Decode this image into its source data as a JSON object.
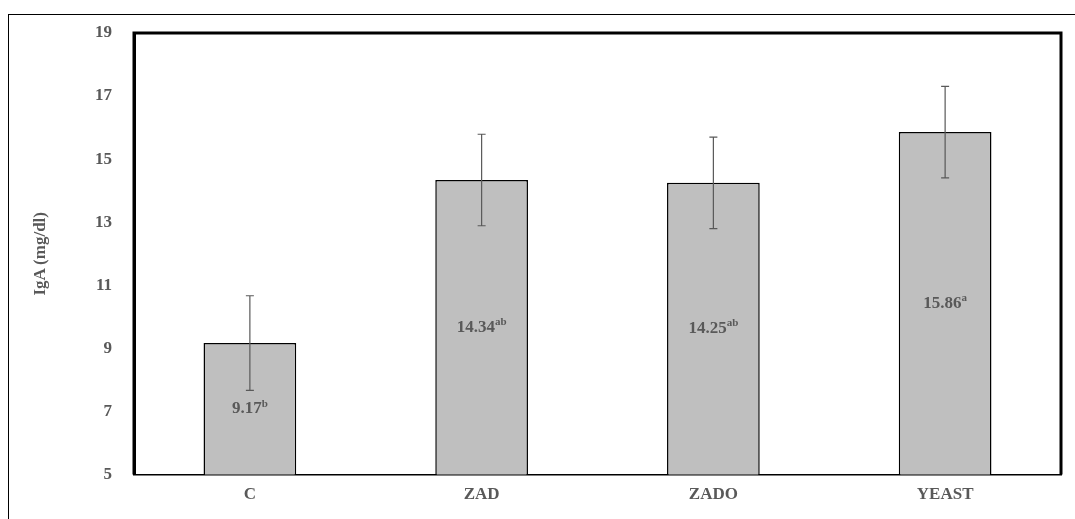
{
  "chart_data": {
    "type": "bar",
    "ylabel": "IgA (mg/dl)",
    "categories": [
      "C",
      "ZAD",
      "ZADO",
      "YEAST"
    ],
    "values": [
      9.17,
      14.34,
      14.25,
      15.86
    ],
    "errors": [
      1.5,
      1.45,
      1.45,
      1.45
    ],
    "value_labels": [
      "9.17$^{b}$",
      "14.34$^{ab}$",
      "14.25$^{ab}$",
      "15.86$^{a}$"
    ],
    "color": "#bfbfbf",
    "ylim": [
      5,
      19
    ],
    "yticks": [
      5,
      7,
      9,
      11,
      13,
      15,
      17,
      19
    ],
    "grid": false,
    "legend": false
  }
}
